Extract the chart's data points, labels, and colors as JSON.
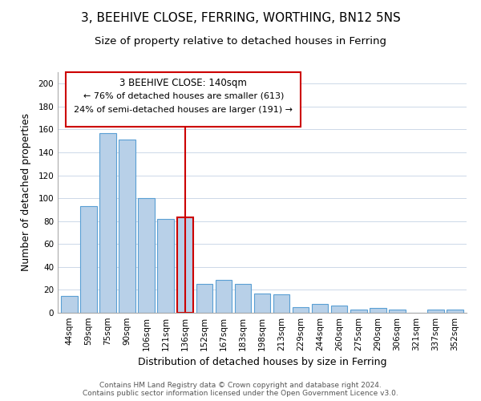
{
  "title": "3, BEEHIVE CLOSE, FERRING, WORTHING, BN12 5NS",
  "subtitle": "Size of property relative to detached houses in Ferring",
  "xlabel": "Distribution of detached houses by size in Ferring",
  "ylabel": "Number of detached properties",
  "bar_labels": [
    "44sqm",
    "59sqm",
    "75sqm",
    "90sqm",
    "106sqm",
    "121sqm",
    "136sqm",
    "152sqm",
    "167sqm",
    "183sqm",
    "198sqm",
    "213sqm",
    "229sqm",
    "244sqm",
    "260sqm",
    "275sqm",
    "290sqm",
    "306sqm",
    "321sqm",
    "337sqm",
    "352sqm"
  ],
  "bar_values": [
    15,
    93,
    157,
    151,
    100,
    82,
    83,
    25,
    29,
    25,
    17,
    16,
    5,
    8,
    6,
    3,
    4,
    3,
    0,
    3,
    3
  ],
  "bar_color": "#b8d0e8",
  "bar_edge_color": "#5a9fd4",
  "highlight_index": 6,
  "highlight_edge_color": "#cc0000",
  "vline_color": "#cc0000",
  "annotation_title": "3 BEEHIVE CLOSE: 140sqm",
  "annotation_line1": "← 76% of detached houses are smaller (613)",
  "annotation_line2": "24% of semi-detached houses are larger (191) →",
  "annotation_box_color": "#ffffff",
  "annotation_box_edge": "#cc0000",
  "ylim": [
    0,
    210
  ],
  "yticks": [
    0,
    20,
    40,
    60,
    80,
    100,
    120,
    140,
    160,
    180,
    200
  ],
  "footer1": "Contains HM Land Registry data © Crown copyright and database right 2024.",
  "footer2": "Contains public sector information licensed under the Open Government Licence v3.0.",
  "bg_color": "#ffffff",
  "grid_color": "#ccd8e8",
  "title_fontsize": 11,
  "subtitle_fontsize": 9.5,
  "axis_label_fontsize": 9,
  "tick_fontsize": 7.5,
  "footer_fontsize": 6.5,
  "ann_title_fontsize": 8.5,
  "ann_text_fontsize": 8
}
